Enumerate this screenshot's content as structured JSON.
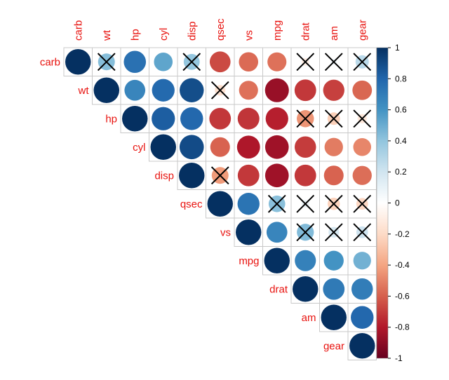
{
  "chart_data": {
    "type": "heatmap",
    "variables": [
      "carb",
      "wt",
      "hp",
      "cyl",
      "disp",
      "qsec",
      "vs",
      "mpg",
      "drat",
      "am",
      "gear"
    ],
    "matrix": [
      [
        1.0,
        0.43,
        0.75,
        0.53,
        0.39,
        -0.66,
        -0.57,
        -0.55,
        -0.09,
        0.06,
        0.27
      ],
      [
        0.43,
        1.0,
        0.66,
        0.78,
        0.89,
        -0.17,
        -0.55,
        -0.87,
        -0.71,
        -0.69,
        -0.58
      ],
      [
        0.75,
        0.66,
        1.0,
        0.83,
        0.79,
        -0.71,
        -0.72,
        -0.78,
        -0.45,
        -0.24,
        -0.13
      ],
      [
        0.53,
        0.78,
        0.83,
        1.0,
        0.9,
        -0.59,
        -0.81,
        -0.85,
        -0.7,
        -0.52,
        -0.49
      ],
      [
        0.39,
        0.89,
        0.79,
        0.9,
        1.0,
        -0.43,
        -0.71,
        -0.85,
        -0.71,
        -0.59,
        -0.56
      ],
      [
        -0.66,
        -0.17,
        -0.71,
        -0.59,
        -0.43,
        1.0,
        0.74,
        0.42,
        0.09,
        -0.23,
        -0.21
      ],
      [
        -0.57,
        -0.55,
        -0.72,
        -0.81,
        -0.71,
        0.74,
        1.0,
        0.66,
        0.44,
        0.17,
        0.21
      ],
      [
        -0.55,
        -0.87,
        -0.78,
        -0.85,
        -0.85,
        0.42,
        0.66,
        1.0,
        0.68,
        0.6,
        0.48
      ],
      [
        -0.09,
        -0.71,
        -0.45,
        -0.7,
        -0.71,
        0.09,
        0.44,
        0.68,
        1.0,
        0.71,
        0.7
      ],
      [
        0.06,
        -0.69,
        -0.24,
        -0.52,
        -0.59,
        -0.23,
        0.17,
        0.6,
        0.71,
        1.0,
        0.79
      ],
      [
        0.27,
        -0.58,
        -0.13,
        -0.49,
        -0.56,
        -0.21,
        0.21,
        0.48,
        0.7,
        0.79,
        1.0
      ]
    ],
    "insignificant": [
      [
        0,
        1
      ],
      [
        0,
        4
      ],
      [
        0,
        8
      ],
      [
        0,
        9
      ],
      [
        0,
        10
      ],
      [
        1,
        5
      ],
      [
        2,
        8
      ],
      [
        2,
        9
      ],
      [
        2,
        10
      ],
      [
        4,
        5
      ],
      [
        5,
        7
      ],
      [
        5,
        8
      ],
      [
        5,
        9
      ],
      [
        5,
        10
      ],
      [
        6,
        8
      ],
      [
        6,
        9
      ],
      [
        6,
        10
      ]
    ],
    "layout": "upper",
    "shape": "circle",
    "label_color": "#e8130f",
    "colorbar": {
      "range": [
        -1,
        1
      ],
      "ticks": [
        "1",
        "0.8",
        "0.6",
        "0.4",
        "0.2",
        "0",
        "-0.2",
        "-0.4",
        "-0.6",
        "-0.8",
        "-1"
      ],
      "colors": [
        "#67001f",
        "#b2182b",
        "#d6604d",
        "#f4a582",
        "#fddbc7",
        "#ffffff",
        "#d1e5f0",
        "#92c5de",
        "#4393c3",
        "#2166ac",
        "#053061"
      ]
    }
  }
}
